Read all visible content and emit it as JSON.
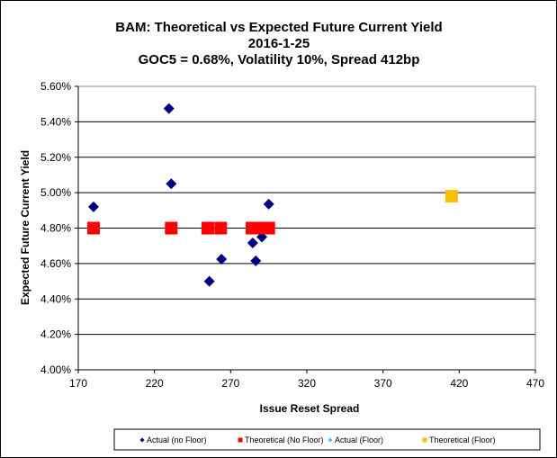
{
  "chart_data": {
    "type": "scatter",
    "title": [
      "BAM: Theoretical vs Expected Future Current Yield",
      "2016-1-25",
      "GOC5 = 0.68%, Volatility 10%, Spread 412bp"
    ],
    "xlabel": "Issue  Reset Spread",
    "ylabel": "Expected Future Current Yield",
    "xlim": [
      170,
      470
    ],
    "ylim": [
      4.0,
      5.6
    ],
    "xticks": [
      "170",
      "220",
      "270",
      "320",
      "370",
      "420",
      "470"
    ],
    "yticks": [
      "4.00%",
      "4.20%",
      "4.40%",
      "4.60%",
      "4.80%",
      "5.00%",
      "5.20%",
      "5.40%",
      "5.60%"
    ],
    "grid": "horizontal",
    "legend_position": "bottom",
    "series": [
      {
        "name": "Actual (no Floor)",
        "marker": "diamond",
        "color": "#000080",
        "points": [
          [
            180,
            4.92
          ],
          [
            229.5,
            5.475
          ],
          [
            231,
            5.05
          ],
          [
            256,
            4.5
          ],
          [
            264,
            4.625
          ],
          [
            284.5,
            4.716
          ],
          [
            286.5,
            4.615
          ],
          [
            290.5,
            4.75
          ],
          [
            295,
            4.935
          ]
        ]
      },
      {
        "name": "Theoretical (No Floor)",
        "marker": "square",
        "color": "#ff0000",
        "points": [
          [
            180,
            4.8
          ],
          [
            231,
            4.8
          ],
          [
            255,
            4.8
          ],
          [
            263.5,
            4.8
          ],
          [
            284,
            4.8
          ],
          [
            287.5,
            4.8
          ],
          [
            291,
            4.8
          ],
          [
            295,
            4.8
          ]
        ]
      },
      {
        "name": "Actual (Floor)",
        "marker": "diamond",
        "color": "#33ccff",
        "points": []
      },
      {
        "name": "Theoretical (Floor)",
        "marker": "square",
        "color": "#ffc000",
        "points": [
          [
            415,
            4.98
          ]
        ]
      }
    ]
  }
}
